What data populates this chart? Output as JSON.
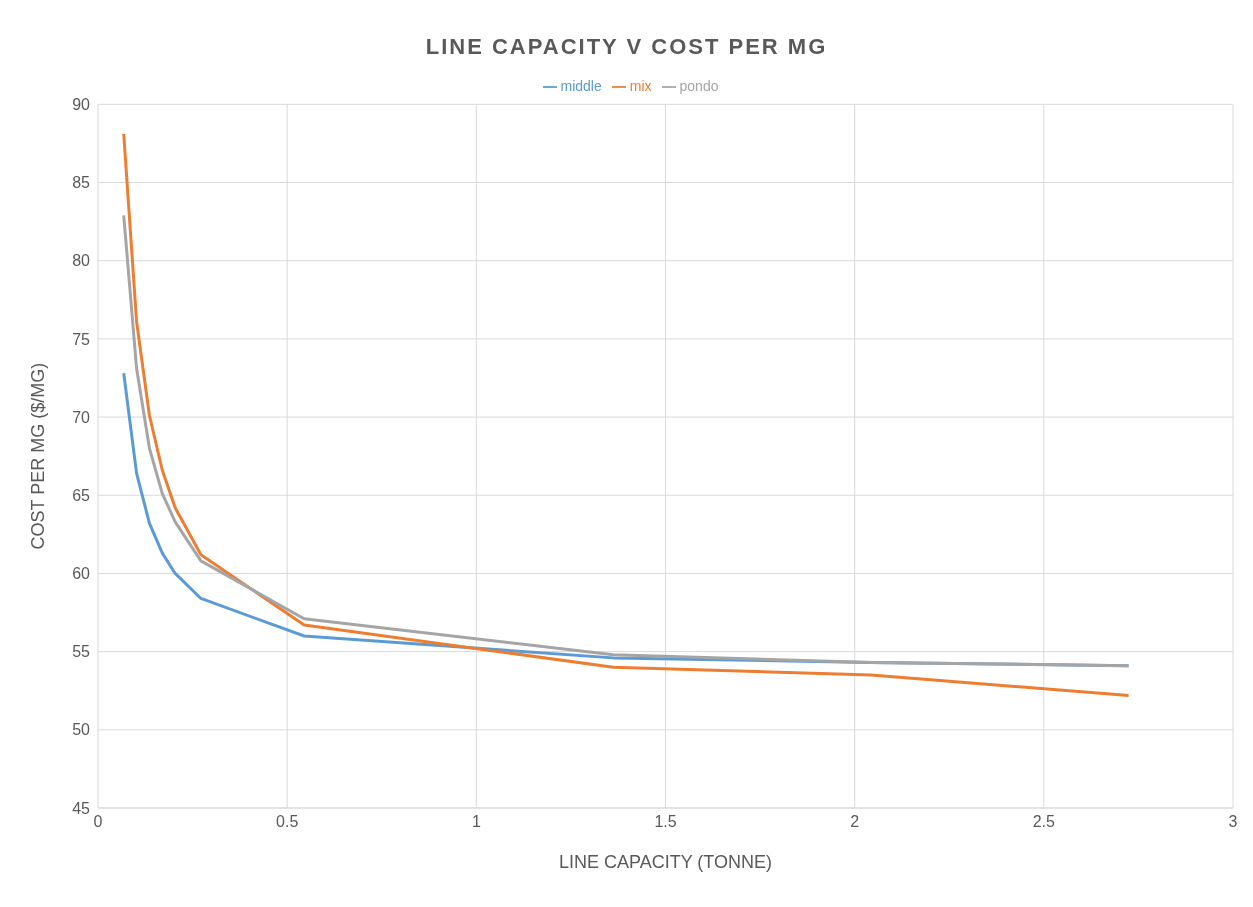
{
  "chart_data": {
    "type": "line",
    "title": "LINE CAPACITY V COST PER MG",
    "xlabel": "LINE CAPACITY (TONNE)",
    "ylabel": "COST PER MG ($/MG)",
    "x": [
      0.068,
      0.102,
      0.136,
      0.17,
      0.204,
      0.272,
      0.545,
      1.362,
      2.043,
      2.724
    ],
    "series": [
      {
        "name": "middle",
        "color": "#5b9bd5",
        "values": [
          72.8,
          66.4,
          63.2,
          61.3,
          60.0,
          58.4,
          56.0,
          54.6,
          54.3,
          54.1
        ]
      },
      {
        "name": "mix",
        "color": "#ed7d31",
        "values": [
          88.1,
          76.1,
          70.1,
          66.6,
          64.2,
          61.2,
          56.7,
          54.0,
          53.5,
          52.2
        ]
      },
      {
        "name": "pondo",
        "color": "#a5a5a5",
        "values": [
          82.9,
          73.1,
          68.0,
          65.1,
          63.3,
          60.8,
          57.1,
          54.8,
          54.3,
          54.1
        ]
      }
    ],
    "xlim": [
      0,
      3
    ],
    "xticks": [
      0,
      0.5,
      1,
      1.5,
      2,
      2.5,
      3
    ],
    "ylim": [
      45,
      90
    ],
    "yticks": [
      45,
      50,
      55,
      60,
      65,
      70,
      75,
      80,
      85,
      90
    ],
    "grid": true,
    "legend": "top",
    "marker": "none",
    "line_style": "solid"
  }
}
